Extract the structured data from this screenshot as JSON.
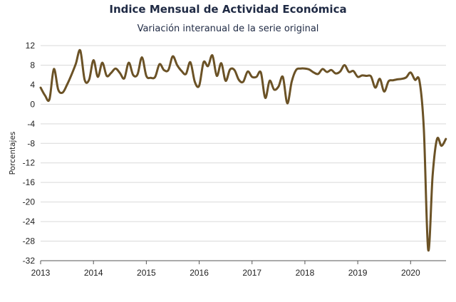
{
  "chart_data": {
    "type": "line",
    "title": "Indice Mensual de  Actividad Económica",
    "subtitle": "Variación interanual de la serie original",
    "ylabel": "Porcentajes",
    "xlabel": "",
    "ylim": [
      -32,
      12
    ],
    "yticks": [
      12,
      8,
      4,
      0,
      -4,
      -8,
      -12,
      -16,
      -20,
      -24,
      -28,
      -32
    ],
    "xlim": [
      2013,
      2020.67
    ],
    "xticks": [
      2013,
      2014,
      2015,
      2016,
      2017,
      2018,
      2019,
      2020
    ],
    "grid": "horizontal",
    "legend": "none",
    "line_color": "#6b5226",
    "series": [
      {
        "x": [
          2013.0,
          2013.083,
          2013.167,
          2013.25,
          2013.333,
          2013.417,
          2013.5,
          2013.583,
          2013.667,
          2013.75,
          2013.833,
          2013.917,
          2014.0,
          2014.083,
          2014.167,
          2014.25,
          2014.333,
          2014.417,
          2014.5,
          2014.583,
          2014.667,
          2014.75,
          2014.833,
          2014.917,
          2015.0,
          2015.083,
          2015.167,
          2015.25,
          2015.333,
          2015.417,
          2015.5,
          2015.583,
          2015.667,
          2015.75,
          2015.833,
          2015.917,
          2016.0,
          2016.083,
          2016.167,
          2016.25,
          2016.333,
          2016.417,
          2016.5,
          2016.583,
          2016.667,
          2016.75,
          2016.833,
          2016.917,
          2017.0,
          2017.083,
          2017.167,
          2017.25,
          2017.333,
          2017.417,
          2017.5,
          2017.583,
          2017.667,
          2017.75,
          2017.833,
          2017.917,
          2018.0,
          2018.083,
          2018.167,
          2018.25,
          2018.333,
          2018.417,
          2018.5,
          2018.583,
          2018.667,
          2018.75,
          2018.833,
          2018.917,
          2019.0,
          2019.083,
          2019.167,
          2019.25,
          2019.333,
          2019.417,
          2019.5,
          2019.583,
          2019.667,
          2019.75,
          2019.833,
          2019.917,
          2020.0,
          2020.083,
          2020.167,
          2020.25,
          2020.333,
          2020.417,
          2020.5,
          2020.583,
          2020.667
        ],
        "y": [
          3.4,
          1.8,
          1.0,
          7.2,
          3.0,
          2.4,
          4.0,
          6.0,
          8.3,
          11.0,
          5.0,
          5.0,
          9.0,
          5.6,
          8.5,
          5.8,
          6.4,
          7.3,
          6.4,
          5.3,
          8.5,
          6.0,
          6.1,
          9.6,
          5.8,
          5.4,
          5.6,
          8.2,
          7.0,
          7.0,
          9.8,
          8.0,
          6.8,
          6.2,
          8.6,
          4.6,
          3.8,
          8.6,
          7.8,
          10.0,
          5.8,
          8.4,
          4.8,
          7.1,
          7.0,
          5.0,
          4.6,
          6.7,
          5.6,
          5.6,
          6.5,
          1.3,
          4.8,
          3.0,
          3.6,
          5.6,
          0.2,
          4.6,
          7.0,
          7.3,
          7.3,
          7.1,
          6.5,
          6.2,
          7.2,
          6.6,
          7.0,
          6.3,
          6.7,
          8.0,
          6.6,
          6.8,
          5.6,
          5.9,
          5.8,
          5.7,
          3.4,
          5.2,
          2.6,
          4.7,
          4.9,
          5.1,
          5.2,
          5.5,
          6.5,
          5.0,
          4.8,
          -5.0,
          -29.8,
          -14.5,
          -7.1,
          -8.5,
          -7.1
        ]
      }
    ]
  }
}
